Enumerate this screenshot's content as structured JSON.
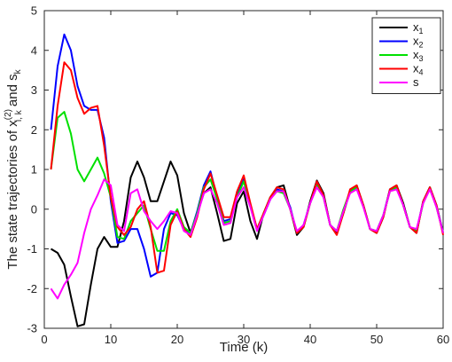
{
  "chart_data": {
    "type": "line",
    "xlabel": "Time (k)",
    "ylabel_parts": {
      "prefix": "The state trajectories of x",
      "superscript": "(2)",
      "subscript": "i, k",
      "middle": " and s",
      "subscript2": "k"
    },
    "xlim": [
      0,
      60
    ],
    "ylim": [
      -3,
      5
    ],
    "xticks": [
      0,
      10,
      20,
      30,
      40,
      50,
      60
    ],
    "yticks": [
      -3,
      -2,
      -1,
      0,
      1,
      2,
      3,
      4,
      5
    ],
    "grid": false,
    "legend_position": "top-right",
    "x": [
      1,
      2,
      3,
      4,
      5,
      6,
      7,
      8,
      9,
      10,
      11,
      12,
      13,
      14,
      15,
      16,
      17,
      18,
      19,
      20,
      21,
      22,
      23,
      24,
      25,
      26,
      27,
      28,
      29,
      30,
      31,
      32,
      33,
      34,
      35,
      36,
      37,
      38,
      39,
      40,
      41,
      42,
      43,
      44,
      45,
      46,
      47,
      48,
      49,
      50,
      51,
      52,
      53,
      54,
      55,
      56,
      57,
      58,
      59,
      60
    ],
    "series": [
      {
        "name": "x",
        "name_sub": "1",
        "color": "#000000",
        "values": [
          -1.0,
          -1.1,
          -1.4,
          -2.2,
          -2.95,
          -2.9,
          -1.9,
          -1.0,
          -0.7,
          -0.95,
          -0.95,
          -0.3,
          0.8,
          1.2,
          0.8,
          0.2,
          0.2,
          0.7,
          1.2,
          0.85,
          -0.1,
          -0.6,
          -0.1,
          0.4,
          0.55,
          -0.1,
          -0.8,
          -0.75,
          0.15,
          0.45,
          -0.3,
          -0.75,
          -0.1,
          0.3,
          0.55,
          0.6,
          0.0,
          -0.65,
          -0.45,
          0.2,
          0.72,
          0.4,
          -0.4,
          -0.6,
          -0.1,
          0.45,
          0.6,
          0.1,
          -0.5,
          -0.6,
          -0.2,
          0.5,
          0.6,
          0.15,
          -0.45,
          -0.6,
          0.2,
          0.55,
          0.1,
          -0.6
        ]
      },
      {
        "name": "x",
        "name_sub": "2",
        "color": "#0000ff",
        "values": [
          2.0,
          3.6,
          4.4,
          4.0,
          3.1,
          2.6,
          2.5,
          2.5,
          1.8,
          0.2,
          -0.85,
          -0.8,
          -0.5,
          -0.5,
          -1.0,
          -1.7,
          -1.6,
          -0.5,
          -0.1,
          -0.15,
          -0.5,
          -0.6,
          -0.05,
          0.6,
          0.95,
          0.3,
          -0.3,
          -0.25,
          0.35,
          0.75,
          0.1,
          -0.5,
          -0.15,
          0.25,
          0.5,
          0.45,
          0.05,
          -0.6,
          -0.4,
          0.15,
          0.65,
          0.35,
          -0.4,
          -0.55,
          -0.05,
          0.45,
          0.55,
          0.1,
          -0.5,
          -0.55,
          -0.15,
          0.5,
          0.55,
          0.1,
          -0.45,
          -0.55,
          0.2,
          0.55,
          0.1,
          -0.6
        ]
      },
      {
        "name": "x",
        "name_sub": "3",
        "color": "#00e000",
        "values": [
          1.0,
          2.3,
          2.45,
          1.9,
          1.0,
          0.7,
          1.0,
          1.3,
          0.9,
          0.3,
          -0.7,
          -0.75,
          -0.3,
          -0.1,
          0.1,
          -0.5,
          -1.05,
          -1.05,
          -0.3,
          0.0,
          -0.45,
          -0.6,
          -0.1,
          0.55,
          0.75,
          0.25,
          -0.35,
          -0.3,
          0.3,
          0.7,
          0.1,
          -0.5,
          -0.1,
          0.3,
          0.45,
          0.4,
          0.0,
          -0.6,
          -0.45,
          0.15,
          0.6,
          0.3,
          -0.4,
          -0.55,
          0.0,
          0.45,
          0.55,
          0.1,
          -0.5,
          -0.55,
          -0.15,
          0.45,
          0.55,
          0.1,
          -0.45,
          -0.55,
          0.15,
          0.55,
          0.05,
          -0.6
        ]
      },
      {
        "name": "x",
        "name_sub": "4",
        "color": "#ff0000",
        "values": [
          1.0,
          2.6,
          3.7,
          3.5,
          2.8,
          2.4,
          2.55,
          2.6,
          1.6,
          0.3,
          -0.45,
          -0.65,
          -0.45,
          0.0,
          0.2,
          -0.45,
          -1.6,
          -1.55,
          -0.4,
          -0.05,
          -0.5,
          -0.7,
          -0.2,
          0.5,
          0.9,
          0.35,
          -0.2,
          -0.2,
          0.45,
          0.85,
          0.15,
          -0.5,
          -0.1,
          0.3,
          0.55,
          0.5,
          0.0,
          -0.6,
          -0.45,
          0.15,
          0.7,
          0.35,
          -0.4,
          -0.65,
          -0.1,
          0.5,
          0.6,
          0.1,
          -0.5,
          -0.6,
          -0.2,
          0.5,
          0.6,
          0.1,
          -0.45,
          -0.6,
          0.2,
          0.55,
          0.1,
          -0.65
        ]
      },
      {
        "name": "s",
        "name_sub": "",
        "color": "#ff00ff",
        "values": [
          -2.0,
          -2.25,
          -1.9,
          -1.65,
          -1.35,
          -0.6,
          0.0,
          0.35,
          0.75,
          0.6,
          -0.4,
          -0.55,
          0.4,
          0.5,
          -0.05,
          -0.3,
          -0.5,
          -0.3,
          -0.05,
          -0.1,
          -0.55,
          -0.65,
          -0.15,
          0.4,
          0.5,
          0.15,
          -0.4,
          -0.35,
          0.3,
          0.55,
          0.05,
          -0.55,
          -0.15,
          0.25,
          0.45,
          0.45,
          0.0,
          -0.55,
          -0.4,
          0.15,
          0.55,
          0.3,
          -0.4,
          -0.55,
          -0.05,
          0.4,
          0.5,
          0.05,
          -0.5,
          -0.55,
          -0.15,
          0.45,
          0.5,
          0.1,
          -0.45,
          -0.5,
          0.15,
          0.5,
          0.05,
          -0.6
        ]
      }
    ]
  }
}
